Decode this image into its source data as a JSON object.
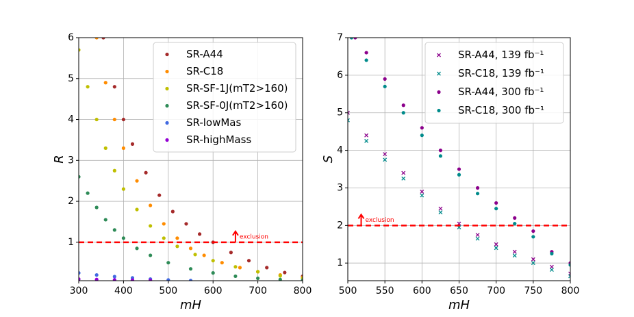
{
  "chart_data": [
    {
      "type": "scatter",
      "xlabel": "mH",
      "ylabel": "R",
      "xlim": [
        300,
        800
      ],
      "ylim": [
        0.06,
        6
      ],
      "xticks": [
        300,
        400,
        500,
        600,
        700,
        800
      ],
      "yticks": [
        1,
        2,
        3,
        4,
        5,
        6
      ],
      "grid": true,
      "legend": "upper right",
      "hline": 1,
      "hline_color": "#ff0000",
      "annotation": "exclusion",
      "series": [
        {
          "name": "SR-A44",
          "color": "#a52a2a",
          "marker": "o",
          "x": [
            355,
            380,
            400,
            420,
            450,
            480,
            510,
            540,
            570,
            600,
            640,
            680,
            720,
            760,
            800
          ],
          "values": [
            6.0,
            4.8,
            4.0,
            3.4,
            2.7,
            2.15,
            1.75,
            1.45,
            1.2,
            1.0,
            0.75,
            0.55,
            0.38,
            0.26,
            0.17
          ]
        },
        {
          "name": "SR-C18",
          "color": "#ff8c00",
          "marker": "o",
          "x": [
            340,
            360,
            380,
            400,
            430,
            460,
            490,
            520,
            550,
            580,
            620,
            660,
            700,
            750,
            800
          ],
          "values": [
            6.0,
            4.9,
            4.0,
            3.3,
            2.5,
            1.9,
            1.45,
            1.1,
            0.85,
            0.68,
            0.5,
            0.38,
            0.28,
            0.2,
            0.14
          ]
        },
        {
          "name": "SR-SF-1J(mT2>160)",
          "color": "#bfbf00",
          "marker": "o",
          "x": [
            300,
            320,
            340,
            360,
            380,
            400,
            430,
            460,
            490,
            520,
            560,
            600,
            650,
            700,
            750,
            800
          ],
          "values": [
            5.7,
            4.8,
            4.0,
            3.3,
            2.75,
            2.3,
            1.8,
            1.4,
            1.1,
            0.9,
            0.7,
            0.55,
            0.4,
            0.28,
            0.18,
            0.12
          ]
        },
        {
          "name": "SR-SF-0J(mT2>160)",
          "color": "#2e8b57",
          "marker": "o",
          "x": [
            300,
            320,
            340,
            360,
            380,
            400,
            430,
            460,
            500,
            550,
            600,
            650,
            700,
            750,
            800
          ],
          "values": [
            2.6,
            2.2,
            1.85,
            1.55,
            1.3,
            1.1,
            0.85,
            0.68,
            0.5,
            0.35,
            0.25,
            0.17,
            0.12,
            0.09,
            0.07
          ]
        },
        {
          "name": "SR-lowMas",
          "color": "#4169e1",
          "marker": "o",
          "x": [
            300,
            340,
            380,
            420,
            460,
            500,
            550
          ],
          "values": [
            0.25,
            0.2,
            0.16,
            0.13,
            0.1,
            0.08,
            0.065
          ]
        },
        {
          "name": "SR-highMass",
          "color": "#9400d3",
          "marker": "o",
          "x": [
            300,
            340,
            380,
            420,
            460
          ],
          "values": [
            0.1,
            0.09,
            0.08,
            0.075,
            0.07
          ]
        }
      ]
    },
    {
      "type": "scatter",
      "xlabel": "mH",
      "ylabel": "S",
      "xlim": [
        500,
        800
      ],
      "ylim": [
        0.53,
        7
      ],
      "xticks": [
        500,
        550,
        600,
        650,
        700,
        750,
        800
      ],
      "yticks": [
        1,
        2,
        3,
        4,
        5,
        6,
        7
      ],
      "grid": true,
      "legend": "upper right",
      "hline": 2,
      "hline_color": "#ff0000",
      "annotation": "exclusion",
      "series": [
        {
          "name": "SR-A44, 139 fb⁻¹",
          "color": "#8b008b",
          "marker": "x",
          "x": [
            500,
            525,
            550,
            575,
            600,
            625,
            650,
            675,
            700,
            725,
            750,
            775,
            800
          ],
          "values": [
            5.0,
            4.4,
            3.9,
            3.4,
            2.9,
            2.45,
            2.05,
            1.75,
            1.5,
            1.3,
            1.1,
            0.9,
            0.72
          ]
        },
        {
          "name": "SR-C18, 139 fb⁻¹",
          "color": "#008b8b",
          "marker": "x",
          "x": [
            500,
            525,
            550,
            575,
            600,
            625,
            650,
            675,
            700,
            725,
            750,
            775,
            800
          ],
          "values": [
            4.8,
            4.25,
            3.75,
            3.25,
            2.8,
            2.35,
            1.95,
            1.65,
            1.4,
            1.2,
            1.0,
            0.82,
            0.65
          ]
        },
        {
          "name": "SR-A44, 300 fb⁻¹",
          "color": "#8b008b",
          "marker": "o",
          "x": [
            510,
            525,
            550,
            575,
            600,
            625,
            650,
            675,
            700,
            725,
            750,
            775,
            800
          ],
          "values": [
            7.0,
            6.6,
            5.9,
            5.2,
            4.6,
            4.0,
            3.5,
            3.0,
            2.6,
            2.2,
            1.85,
            1.3,
            1.0
          ]
        },
        {
          "name": "SR-C18, 300 fb⁻¹",
          "color": "#008b8b",
          "marker": "o",
          "x": [
            505,
            525,
            550,
            575,
            600,
            625,
            650,
            675,
            700,
            725,
            750,
            775,
            800
          ],
          "values": [
            7.0,
            6.4,
            5.7,
            5.0,
            4.4,
            3.85,
            3.35,
            2.85,
            2.45,
            2.05,
            1.7,
            1.25,
            0.95
          ]
        }
      ]
    }
  ]
}
